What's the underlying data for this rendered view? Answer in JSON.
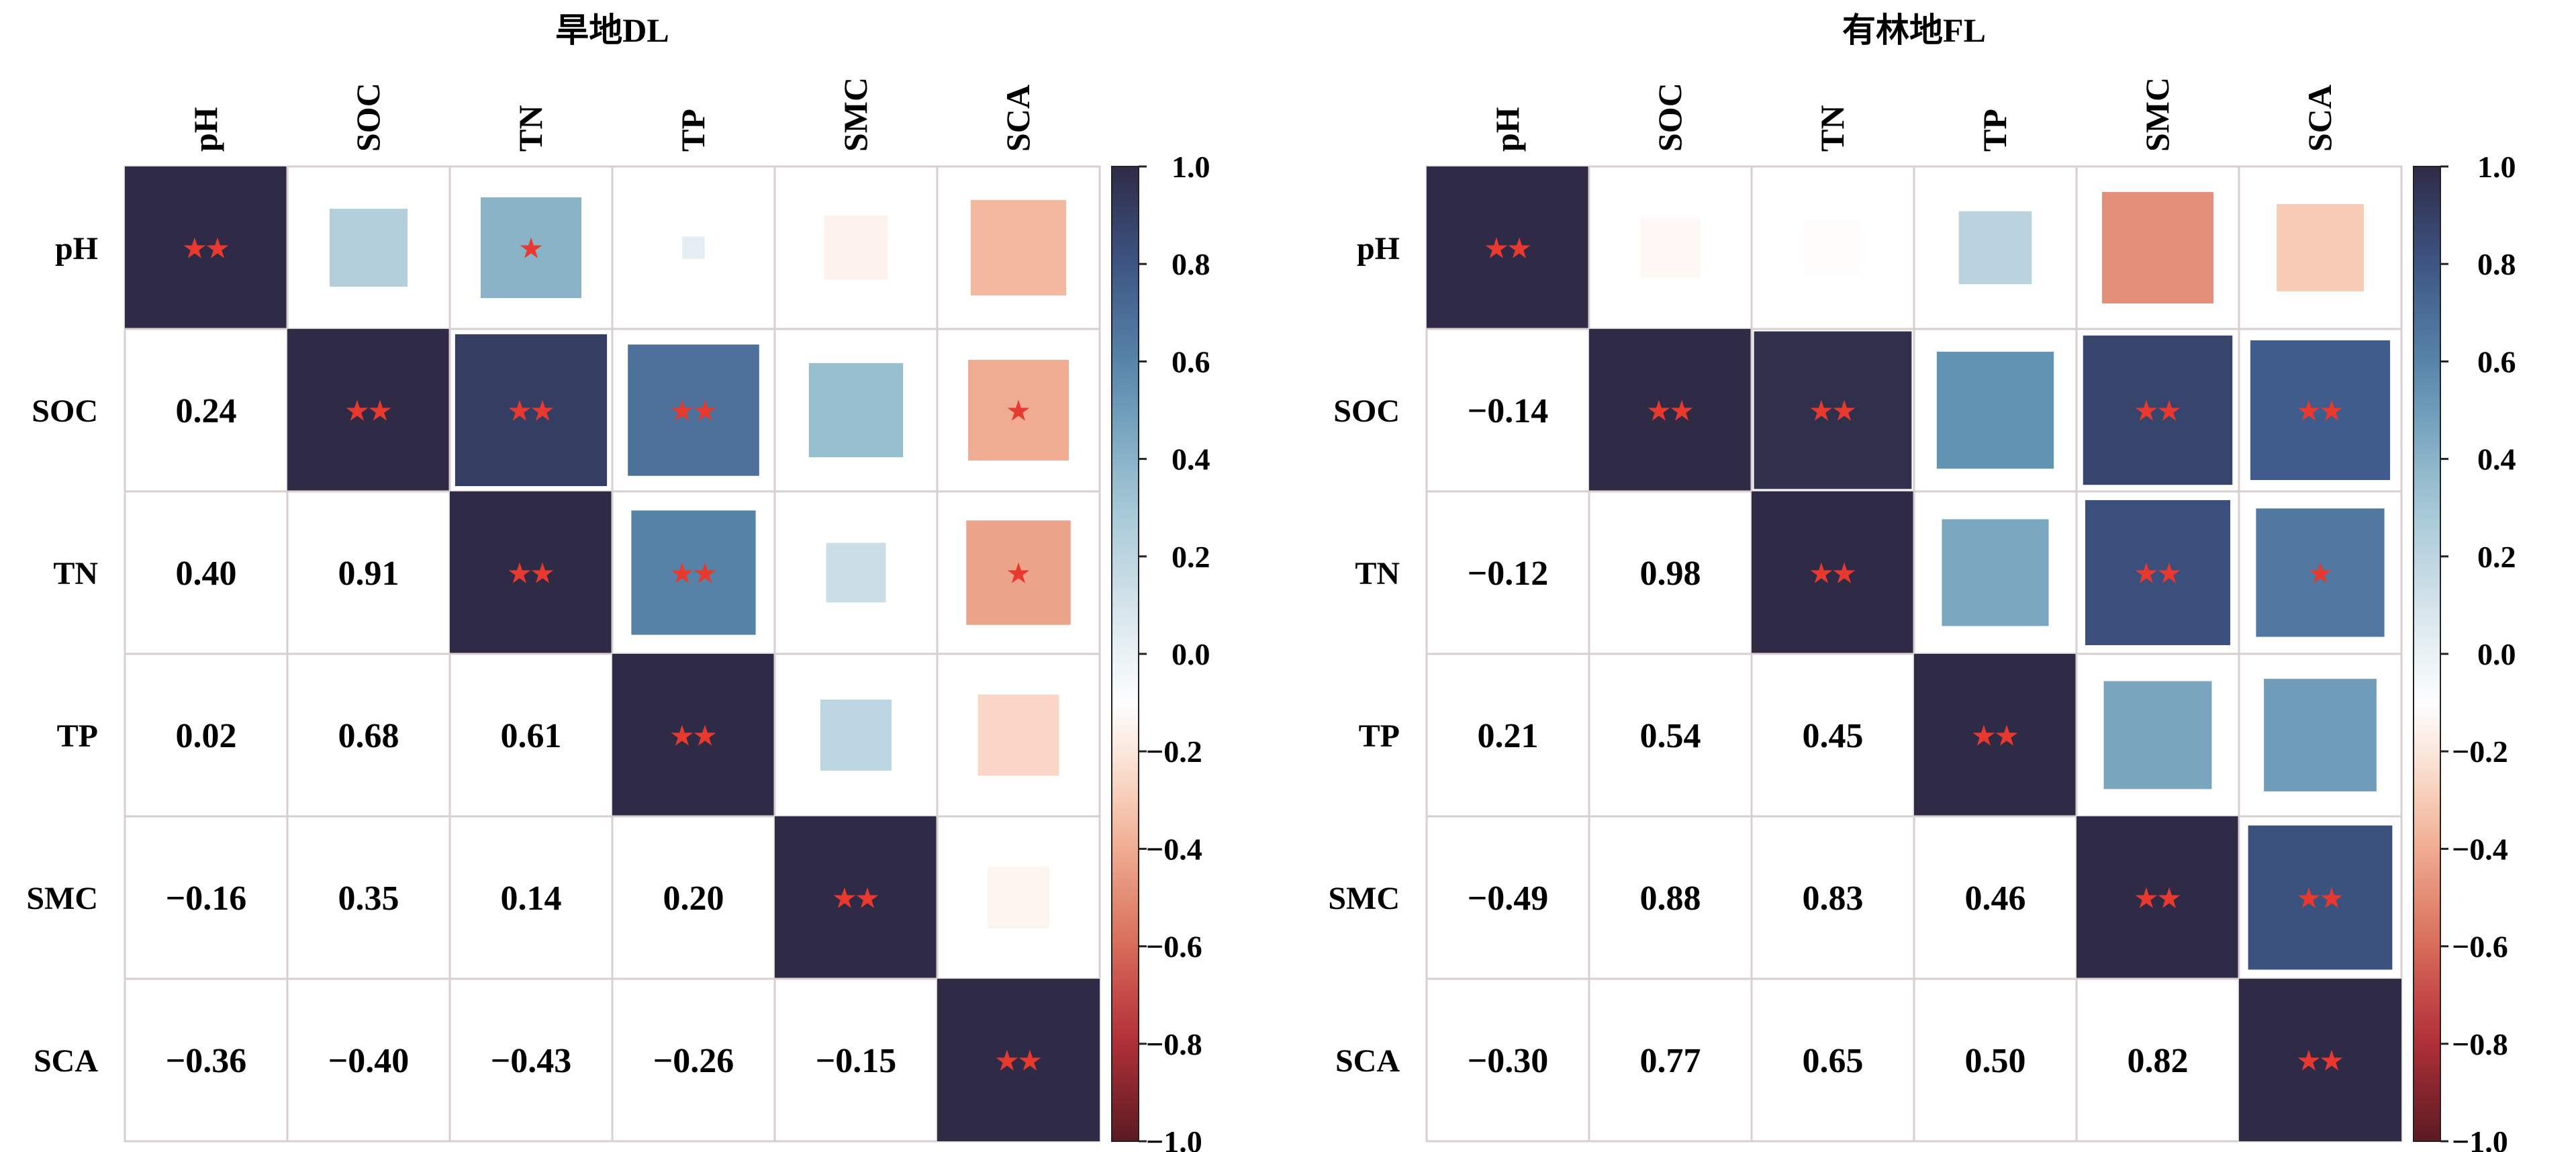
{
  "chart_data": [
    {
      "type": "heatmap",
      "title": "旱地DL",
      "labels": [
        "pH",
        "SOC",
        "TN",
        "TP",
        "SMC",
        "SCA"
      ],
      "lower": [
        [
          1
        ],
        [
          0.24,
          1
        ],
        [
          0.4,
          0.91,
          1
        ],
        [
          0.02,
          0.68,
          0.61,
          1
        ],
        [
          -0.16,
          0.35,
          0.14,
          0.2,
          1
        ],
        [
          -0.36,
          -0.4,
          -0.43,
          -0.26,
          -0.15,
          1
        ]
      ],
      "lower_text": [
        [],
        [
          "0.24"
        ],
        [
          "0.40",
          "0.91"
        ],
        [
          "0.02",
          "0.68",
          "0.61"
        ],
        [
          "−0.16",
          "0.35",
          "0.14",
          "0.20"
        ],
        [
          "−0.36",
          "−0.40",
          "−0.43",
          "−0.26",
          "−0.15"
        ]
      ],
      "stars": [
        [
          "**",
          "",
          "*",
          "",
          "",
          ""
        ],
        [
          "",
          "**",
          "**",
          "**",
          "",
          "*"
        ],
        [
          "",
          "",
          "**",
          "**",
          "",
          "*"
        ],
        [
          "",
          "",
          "",
          "**",
          "",
          ""
        ],
        [
          "",
          "",
          "",
          "",
          "**",
          ""
        ],
        [
          "",
          "",
          "",
          "",
          "",
          "**"
        ]
      ],
      "colorbar": {
        "range": [
          -1,
          1
        ],
        "ticks": [
          "1.0",
          "0.8",
          "0.6",
          "0.4",
          "0.2",
          "0.0",
          "−0.2",
          "−0.4",
          "−0.6",
          "−0.8",
          "−1.0"
        ]
      }
    },
    {
      "type": "heatmap",
      "title": "有林地FL",
      "labels": [
        "pH",
        "SOC",
        "TN",
        "TP",
        "SMC",
        "SCA"
      ],
      "lower": [
        [
          1
        ],
        [
          -0.14,
          1
        ],
        [
          -0.12,
          0.98,
          1
        ],
        [
          0.21,
          0.54,
          0.45,
          1
        ],
        [
          -0.49,
          0.88,
          0.83,
          0.46,
          1
        ],
        [
          -0.3,
          0.77,
          0.65,
          0.5,
          0.82,
          1
        ]
      ],
      "lower_text": [
        [],
        [
          "−0.14"
        ],
        [
          "−0.12",
          "0.98"
        ],
        [
          "0.21",
          "0.54",
          "0.45"
        ],
        [
          "−0.49",
          "0.88",
          "0.83",
          "0.46"
        ],
        [
          "−0.30",
          "0.77",
          "0.65",
          "0.50",
          "0.82"
        ]
      ],
      "stars": [
        [
          "**",
          "",
          "",
          "",
          "",
          ""
        ],
        [
          "",
          "**",
          "**",
          "",
          "**",
          "**"
        ],
        [
          "",
          "",
          "**",
          "",
          "**",
          "*"
        ],
        [
          "",
          "",
          "",
          "**",
          "",
          ""
        ],
        [
          "",
          "",
          "",
          "",
          "**",
          "**"
        ],
        [
          "",
          "",
          "",
          "",
          "",
          "**"
        ]
      ],
      "colorbar": {
        "range": [
          -1,
          1
        ],
        "ticks": [
          "1.0",
          "0.8",
          "0.6",
          "0.4",
          "0.2",
          "0.0",
          "−0.2",
          "−0.4",
          "−0.6",
          "−0.8",
          "−1.0"
        ]
      }
    }
  ],
  "colors": {
    "star": "#e8392f",
    "grid": "#d9cfcf",
    "stops": [
      "#5c1a22",
      "#b8323a",
      "#dd7a62",
      "#f6c2a8",
      "#ffffff",
      "#d2e2ea",
      "#9cc2d2",
      "#5f8fb0",
      "#3e5a8b",
      "#2f2b46"
    ]
  }
}
